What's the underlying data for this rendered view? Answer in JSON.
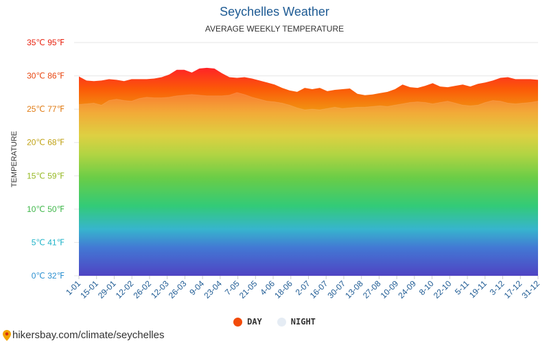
{
  "colors": {
    "day": "#f24b0a",
    "night": "#e5ecf4",
    "title": "#1d5a93"
  },
  "chart_data": {
    "type": "area",
    "title": "Seychelles Weather",
    "subtitle": "AVERAGE WEEKLY TEMPERATURE",
    "ylabel": "TEMPERATURE",
    "ylim": [
      0,
      35
    ],
    "grid": true,
    "legend_position": "bottom",
    "y_ticks": [
      {
        "value": 0,
        "label": "0℃ 32℉",
        "color": "#2a8fd0"
      },
      {
        "value": 5,
        "label": "5℃ 41℉",
        "color": "#1fb3c8"
      },
      {
        "value": 10,
        "label": "10℃ 50℉",
        "color": "#3fb74a"
      },
      {
        "value": 15,
        "label": "15℃ 59℉",
        "color": "#96b924"
      },
      {
        "value": 20,
        "label": "20℃ 68℉",
        "color": "#c0a214"
      },
      {
        "value": 25,
        "label": "25℃ 77℉",
        "color": "#e07a12"
      },
      {
        "value": 30,
        "label": "30℃ 86℉",
        "color": "#e8450f"
      },
      {
        "value": 35,
        "label": "35℃ 95℉",
        "color": "#e8220f"
      }
    ],
    "x_tick_labels": [
      "1-01",
      "15-01",
      "29-01",
      "12-02",
      "26-02",
      "12-03",
      "26-03",
      "9-04",
      "23-04",
      "7-05",
      "21-05",
      "4-06",
      "18-06",
      "2-07",
      "16-07",
      "30-07",
      "13-08",
      "27-08",
      "10-09",
      "24-09",
      "8-10",
      "22-10",
      "5-11",
      "19-11",
      "3-12",
      "17-12",
      "31-12"
    ],
    "series": [
      {
        "name": "DAY",
        "values": [
          29.9,
          29.3,
          29.2,
          29.3,
          29.5,
          29.4,
          29.2,
          29.5,
          29.5,
          29.5,
          29.6,
          29.8,
          30.2,
          30.9,
          30.9,
          30.5,
          31.1,
          31.2,
          31.1,
          30.4,
          29.8,
          29.7,
          29.8,
          29.6,
          29.3,
          29.0,
          28.7,
          28.2,
          27.8,
          27.6,
          28.2,
          28.0,
          28.2,
          27.7,
          27.9,
          28.0,
          28.1,
          27.3,
          27.1,
          27.2,
          27.4,
          27.6,
          28.0,
          28.7,
          28.3,
          28.2,
          28.5,
          28.9,
          28.4,
          28.3,
          28.5,
          28.7,
          28.4,
          28.8,
          29.0,
          29.3,
          29.7,
          29.8,
          29.5,
          29.5,
          29.5,
          29.4
        ]
      },
      {
        "name": "NIGHT",
        "values": [
          25.7,
          25.8,
          25.9,
          25.6,
          26.3,
          26.5,
          26.3,
          26.2,
          26.6,
          26.8,
          26.7,
          26.7,
          26.8,
          27.0,
          27.1,
          27.2,
          27.1,
          27.0,
          27.0,
          27.0,
          27.1,
          27.5,
          27.2,
          26.8,
          26.5,
          26.2,
          26.1,
          25.9,
          25.6,
          25.2,
          24.9,
          25.0,
          24.9,
          25.1,
          25.3,
          25.1,
          25.2,
          25.3,
          25.3,
          25.4,
          25.5,
          25.4,
          25.6,
          25.8,
          26.0,
          26.1,
          26.0,
          25.8,
          26.0,
          26.2,
          25.9,
          25.6,
          25.5,
          25.6,
          26.0,
          26.3,
          26.2,
          25.9,
          25.8,
          25.9,
          26.0,
          26.2
        ]
      }
    ]
  },
  "legend": {
    "day_label": "DAY",
    "night_label": "NIGHT"
  },
  "footer": {
    "text": "hikersbay.com/climate/seychelles",
    "icon": "map-pin-icon"
  }
}
